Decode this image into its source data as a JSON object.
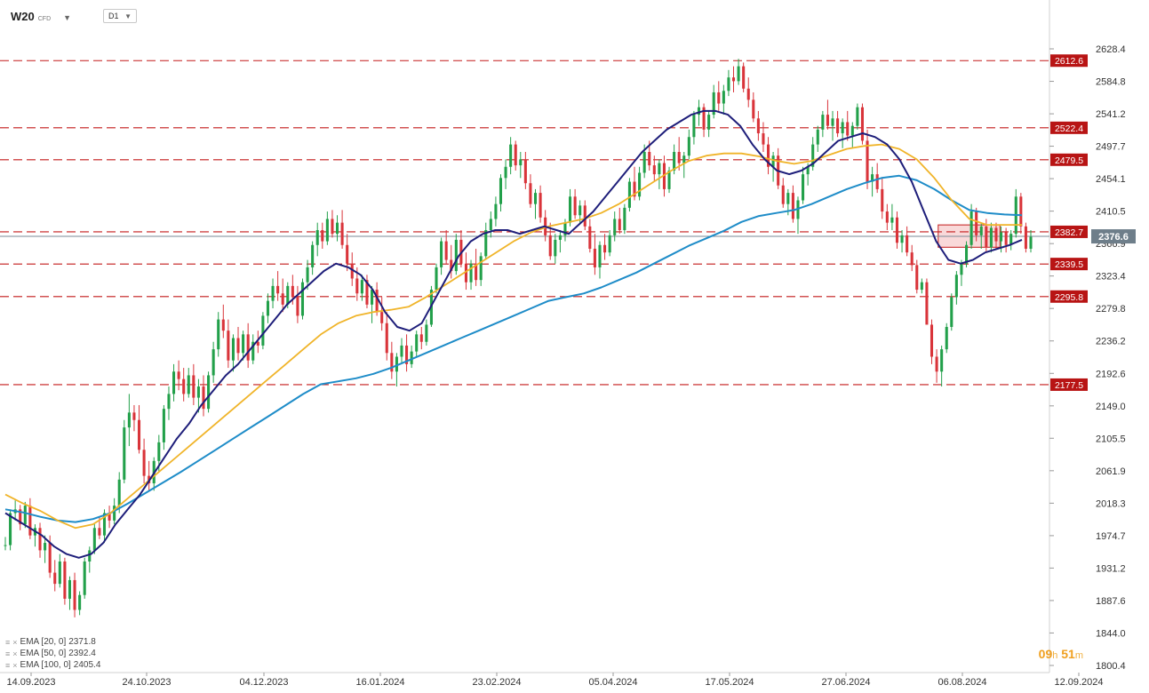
{
  "header": {
    "symbol": "W20",
    "symbol_type": "CFD",
    "timeframe": "D1"
  },
  "colors": {
    "bull": "#22a04a",
    "bear": "#d9343a",
    "ema20": "#1e1e7a",
    "ema50": "#f0b429",
    "ema100": "#1e8cc8",
    "level": "#c41a1a",
    "box_fill": "#f6c9c9",
    "current_price": "#7a8a96",
    "axis_text": "#333333",
    "timer": "#f0a020"
  },
  "legend": [
    {
      "label": "EMA [20, 0]",
      "value": "2371.8",
      "icons": "≡ ×"
    },
    {
      "label": "EMA [50, 0]",
      "value": "2392.4",
      "icons": "≡ ×"
    },
    {
      "label": "EMA [100, 0]",
      "value": "2405.4",
      "icons": "≡ ×"
    }
  ],
  "timer": {
    "hours": "09",
    "h": "h",
    "minutes": "51",
    "m": "m"
  },
  "chart_data": {
    "type": "candlestick",
    "title": "",
    "y_ticks": [
      2628.4,
      2584.8,
      2541.2,
      2497.7,
      2454.1,
      2410.5,
      2366.9,
      2323.4,
      2279.8,
      2236.2,
      2192.6,
      2149.0,
      2105.5,
      2061.9,
      2018.3,
      1974.7,
      1931.2,
      1887.6,
      1844.0,
      1800.4
    ],
    "y_tick_labels": [
      "2628.4",
      "2584.8",
      "2541.2",
      "2497.7",
      "2454.1",
      "2410.5",
      "2366.9",
      "2323.4",
      "2279.8",
      "2236.2",
      "2192.6",
      "2149.0",
      "2105.5",
      "2061.9",
      "2018.3",
      "1974.7",
      "1931.2",
      "1887.6",
      "1844.0",
      "1800.4"
    ],
    "ylim": [
      1797,
      2651
    ],
    "x_ticks": [
      "14.09.2023",
      "24.10.2023",
      "04.12.2023",
      "16.01.2024",
      "23.02.2024",
      "05.04.2024",
      "17.05.2024",
      "27.06.2024",
      "06.08.2024",
      "12.09.2024"
    ],
    "levels": [
      {
        "value": 2612.6,
        "label": "2612.6"
      },
      {
        "value": 2522.4,
        "label": "2522.4"
      },
      {
        "value": 2479.5,
        "label": "2479.5"
      },
      {
        "value": 2382.7,
        "label": "2382.7"
      },
      {
        "value": 2339.5,
        "label": "2339.5"
      },
      {
        "value": 2295.8,
        "label": "2295.8"
      },
      {
        "value": 2177.5,
        "label": "2177.5"
      }
    ],
    "current_price": {
      "value": 2376.6,
      "label": "2376.6"
    },
    "box": {
      "x_from": 272,
      "x_to": 290,
      "y_top": 2392,
      "y_bottom": 2362
    },
    "x_slots": 300,
    "ohlc": [
      [
        1961,
        1973,
        1955,
        1962
      ],
      [
        1962,
        2010,
        1955,
        2005
      ],
      [
        2005,
        2022,
        1995,
        2010
      ],
      [
        2010,
        2016,
        1982,
        1990
      ],
      [
        1990,
        2020,
        1985,
        2015
      ],
      [
        2015,
        2025,
        1970,
        1975
      ],
      [
        1975,
        1990,
        1960,
        1985
      ],
      [
        1985,
        1992,
        1945,
        1955
      ],
      [
        1955,
        1975,
        1938,
        1965
      ],
      [
        1965,
        1975,
        1918,
        1925
      ],
      [
        1925,
        1942,
        1900,
        1910
      ],
      [
        1910,
        1950,
        1905,
        1940
      ],
      [
        1940,
        1945,
        1882,
        1890
      ],
      [
        1890,
        1920,
        1875,
        1915
      ],
      [
        1915,
        1925,
        1865,
        1875
      ],
      [
        1875,
        1900,
        1868,
        1895
      ],
      [
        1895,
        1945,
        1890,
        1940
      ],
      [
        1940,
        1960,
        1925,
        1955
      ],
      [
        1955,
        1990,
        1950,
        1985
      ],
      [
        1985,
        2000,
        1970,
        1975
      ],
      [
        1975,
        2010,
        1965,
        2005
      ],
      [
        2005,
        2015,
        1985,
        1995
      ],
      [
        1995,
        2025,
        1990,
        2015
      ],
      [
        2015,
        2060,
        2005,
        2050
      ],
      [
        2050,
        2130,
        2045,
        2120
      ],
      [
        2120,
        2165,
        2095,
        2140
      ],
      [
        2140,
        2150,
        2115,
        2130
      ],
      [
        2130,
        2150,
        2085,
        2090
      ],
      [
        2090,
        2105,
        2045,
        2055
      ],
      [
        2055,
        2075,
        2035,
        2045
      ],
      [
        2045,
        2080,
        2035,
        2075
      ],
      [
        2075,
        2110,
        2060,
        2100
      ],
      [
        2100,
        2150,
        2090,
        2145
      ],
      [
        2145,
        2175,
        2130,
        2165
      ],
      [
        2165,
        2205,
        2155,
        2195
      ],
      [
        2195,
        2210,
        2170,
        2185
      ],
      [
        2185,
        2200,
        2155,
        2165
      ],
      [
        2165,
        2200,
        2160,
        2190
      ],
      [
        2190,
        2205,
        2150,
        2160
      ],
      [
        2160,
        2185,
        2140,
        2175
      ],
      [
        2175,
        2190,
        2135,
        2145
      ],
      [
        2145,
        2195,
        2140,
        2190
      ],
      [
        2190,
        2235,
        2180,
        2225
      ],
      [
        2225,
        2275,
        2215,
        2265
      ],
      [
        2265,
        2285,
        2240,
        2250
      ],
      [
        2250,
        2265,
        2200,
        2210
      ],
      [
        2210,
        2245,
        2195,
        2240
      ],
      [
        2240,
        2255,
        2210,
        2220
      ],
      [
        2220,
        2250,
        2210,
        2245
      ],
      [
        2245,
        2260,
        2200,
        2210
      ],
      [
        2210,
        2245,
        2205,
        2235
      ],
      [
        2235,
        2250,
        2220,
        2230
      ],
      [
        2230,
        2275,
        2225,
        2270
      ],
      [
        2270,
        2300,
        2260,
        2290
      ],
      [
        2290,
        2320,
        2280,
        2310
      ],
      [
        2310,
        2330,
        2290,
        2300
      ],
      [
        2300,
        2320,
        2275,
        2285
      ],
      [
        2285,
        2315,
        2280,
        2310
      ],
      [
        2310,
        2325,
        2285,
        2295
      ],
      [
        2295,
        2310,
        2260,
        2270
      ],
      [
        2270,
        2320,
        2265,
        2315
      ],
      [
        2315,
        2345,
        2305,
        2335
      ],
      [
        2335,
        2370,
        2325,
        2365
      ],
      [
        2365,
        2395,
        2350,
        2385
      ],
      [
        2385,
        2395,
        2360,
        2370
      ],
      [
        2370,
        2410,
        2365,
        2400
      ],
      [
        2400,
        2412,
        2375,
        2380
      ],
      [
        2380,
        2405,
        2370,
        2395
      ],
      [
        2395,
        2412,
        2360,
        2365
      ],
      [
        2365,
        2380,
        2330,
        2340
      ],
      [
        2340,
        2355,
        2310,
        2320
      ],
      [
        2320,
        2335,
        2290,
        2300
      ],
      [
        2300,
        2325,
        2290,
        2318
      ],
      [
        2318,
        2325,
        2280,
        2285
      ],
      [
        2285,
        2310,
        2260,
        2305
      ],
      [
        2305,
        2315,
        2270,
        2275
      ],
      [
        2275,
        2295,
        2250,
        2260
      ],
      [
        2260,
        2275,
        2210,
        2220
      ],
      [
        2220,
        2235,
        2185,
        2195
      ],
      [
        2195,
        2220,
        2175,
        2215
      ],
      [
        2215,
        2240,
        2205,
        2230
      ],
      [
        2230,
        2245,
        2195,
        2205
      ],
      [
        2205,
        2230,
        2200,
        2222
      ],
      [
        2222,
        2250,
        2215,
        2245
      ],
      [
        2245,
        2255,
        2225,
        2235
      ],
      [
        2235,
        2265,
        2230,
        2258
      ],
      [
        2258,
        2310,
        2255,
        2305
      ],
      [
        2305,
        2340,
        2300,
        2335
      ],
      [
        2335,
        2375,
        2325,
        2370
      ],
      [
        2370,
        2385,
        2340,
        2345
      ],
      [
        2345,
        2365,
        2320,
        2330
      ],
      [
        2330,
        2380,
        2325,
        2372
      ],
      [
        2372,
        2385,
        2335,
        2340
      ],
      [
        2340,
        2355,
        2305,
        2315
      ],
      [
        2315,
        2345,
        2305,
        2340
      ],
      [
        2340,
        2360,
        2310,
        2318
      ],
      [
        2318,
        2355,
        2310,
        2350
      ],
      [
        2350,
        2395,
        2345,
        2385
      ],
      [
        2385,
        2410,
        2375,
        2400
      ],
      [
        2400,
        2430,
        2390,
        2420
      ],
      [
        2420,
        2460,
        2410,
        2455
      ],
      [
        2455,
        2480,
        2440,
        2470
      ],
      [
        2470,
        2510,
        2460,
        2500
      ],
      [
        2500,
        2505,
        2465,
        2472
      ],
      [
        2472,
        2490,
        2455,
        2480
      ],
      [
        2480,
        2490,
        2440,
        2448
      ],
      [
        2448,
        2460,
        2415,
        2420
      ],
      [
        2420,
        2440,
        2400,
        2435
      ],
      [
        2435,
        2445,
        2395,
        2402
      ],
      [
        2402,
        2412,
        2370,
        2378
      ],
      [
        2378,
        2395,
        2345,
        2350
      ],
      [
        2350,
        2380,
        2340,
        2372
      ],
      [
        2372,
        2385,
        2355,
        2378
      ],
      [
        2378,
        2400,
        2370,
        2395
      ],
      [
        2395,
        2440,
        2390,
        2430
      ],
      [
        2430,
        2440,
        2400,
        2405
      ],
      [
        2405,
        2425,
        2395,
        2418
      ],
      [
        2418,
        2425,
        2385,
        2390
      ],
      [
        2390,
        2400,
        2355,
        2360
      ],
      [
        2360,
        2380,
        2325,
        2335
      ],
      [
        2335,
        2370,
        2320,
        2365
      ],
      [
        2365,
        2380,
        2345,
        2355
      ],
      [
        2355,
        2385,
        2350,
        2378
      ],
      [
        2378,
        2410,
        2370,
        2400
      ],
      [
        2400,
        2415,
        2380,
        2385
      ],
      [
        2385,
        2420,
        2380,
        2415
      ],
      [
        2415,
        2455,
        2410,
        2450
      ],
      [
        2450,
        2470,
        2425,
        2430
      ],
      [
        2430,
        2470,
        2425,
        2462
      ],
      [
        2462,
        2500,
        2455,
        2490
      ],
      [
        2490,
        2505,
        2465,
        2472
      ],
      [
        2472,
        2485,
        2450,
        2460
      ],
      [
        2460,
        2480,
        2440,
        2475
      ],
      [
        2475,
        2485,
        2430,
        2440
      ],
      [
        2440,
        2470,
        2435,
        2465
      ],
      [
        2465,
        2500,
        2460,
        2490
      ],
      [
        2490,
        2510,
        2465,
        2475
      ],
      [
        2475,
        2490,
        2455,
        2485
      ],
      [
        2485,
        2520,
        2480,
        2510
      ],
      [
        2510,
        2545,
        2500,
        2540
      ],
      [
        2540,
        2560,
        2525,
        2550
      ],
      [
        2550,
        2555,
        2510,
        2520
      ],
      [
        2520,
        2545,
        2510,
        2540
      ],
      [
        2540,
        2580,
        2535,
        2570
      ],
      [
        2570,
        2585,
        2545,
        2555
      ],
      [
        2555,
        2580,
        2540,
        2572
      ],
      [
        2572,
        2600,
        2565,
        2590
      ],
      [
        2590,
        2605,
        2570,
        2585
      ],
      [
        2585,
        2615,
        2580,
        2605
      ],
      [
        2605,
        2610,
        2570,
        2575
      ],
      [
        2575,
        2590,
        2550,
        2560
      ],
      [
        2560,
        2570,
        2530,
        2535
      ],
      [
        2535,
        2545,
        2505,
        2515
      ],
      [
        2515,
        2530,
        2490,
        2500
      ],
      [
        2500,
        2510,
        2460,
        2470
      ],
      [
        2470,
        2490,
        2450,
        2485
      ],
      [
        2485,
        2495,
        2440,
        2445
      ],
      [
        2445,
        2455,
        2415,
        2420
      ],
      [
        2420,
        2440,
        2405,
        2435
      ],
      [
        2435,
        2445,
        2395,
        2400
      ],
      [
        2400,
        2430,
        2380,
        2425
      ],
      [
        2425,
        2470,
        2420,
        2460
      ],
      [
        2460,
        2475,
        2445,
        2470
      ],
      [
        2470,
        2510,
        2465,
        2500
      ],
      [
        2500,
        2525,
        2490,
        2520
      ],
      [
        2520,
        2545,
        2510,
        2540
      ],
      [
        2540,
        2560,
        2520,
        2525
      ],
      [
        2525,
        2545,
        2505,
        2535
      ],
      [
        2535,
        2545,
        2510,
        2515
      ],
      [
        2515,
        2535,
        2495,
        2530
      ],
      [
        2530,
        2545,
        2505,
        2512
      ],
      [
        2512,
        2530,
        2495,
        2525
      ],
      [
        2525,
        2555,
        2520,
        2550
      ],
      [
        2550,
        2555,
        2500,
        2505
      ],
      [
        2505,
        2520,
        2440,
        2450
      ],
      [
        2450,
        2470,
        2430,
        2460
      ],
      [
        2460,
        2475,
        2435,
        2440
      ],
      [
        2440,
        2455,
        2400,
        2410
      ],
      [
        2410,
        2420,
        2385,
        2395
      ],
      [
        2395,
        2420,
        2385,
        2402
      ],
      [
        2402,
        2410,
        2360,
        2368
      ],
      [
        2368,
        2385,
        2355,
        2378
      ],
      [
        2378,
        2390,
        2350,
        2355
      ],
      [
        2355,
        2365,
        2330,
        2338
      ],
      [
        2338,
        2345,
        2300,
        2305
      ],
      [
        2305,
        2320,
        2300,
        2315
      ],
      [
        2315,
        2320,
        2260,
        2258
      ],
      [
        2258,
        2265,
        2205,
        2215
      ],
      [
        2215,
        2225,
        2180,
        2195
      ],
      [
        2195,
        2230,
        2175,
        2225
      ],
      [
        2225,
        2260,
        2220,
        2255
      ],
      [
        2255,
        2300,
        2250,
        2295
      ],
      [
        2295,
        2330,
        2285,
        2325
      ],
      [
        2325,
        2345,
        2310,
        2340
      ],
      [
        2340,
        2370,
        2335,
        2365
      ],
      [
        2365,
        2420,
        2360,
        2410
      ],
      [
        2410,
        2415,
        2370,
        2378
      ],
      [
        2378,
        2395,
        2360,
        2390
      ],
      [
        2390,
        2400,
        2355,
        2362
      ],
      [
        2362,
        2395,
        2355,
        2388
      ],
      [
        2388,
        2395,
        2360,
        2370
      ],
      [
        2370,
        2390,
        2355,
        2382
      ],
      [
        2382,
        2388,
        2355,
        2365
      ],
      [
        2365,
        2385,
        2358,
        2380
      ],
      [
        2380,
        2440,
        2375,
        2430
      ],
      [
        2430,
        2435,
        2380,
        2390
      ],
      [
        2390,
        2395,
        2355,
        2360
      ],
      [
        2360,
        2385,
        2355,
        2376
      ]
    ],
    "ema20": [
      2005,
      1995,
      1985,
      1975,
      1960,
      1950,
      1945,
      1950,
      1965,
      1990,
      2010,
      2030,
      2055,
      2080,
      2105,
      2125,
      2150,
      2170,
      2190,
      2205,
      2225,
      2245,
      2265,
      2285,
      2300,
      2315,
      2330,
      2340,
      2335,
      2325,
      2305,
      2275,
      2255,
      2250,
      2260,
      2290,
      2320,
      2350,
      2370,
      2380,
      2385,
      2385,
      2380,
      2385,
      2390,
      2385,
      2380,
      2395,
      2410,
      2430,
      2450,
      2470,
      2490,
      2505,
      2520,
      2530,
      2540,
      2545,
      2545,
      2540,
      2525,
      2500,
      2480,
      2465,
      2460,
      2465,
      2475,
      2490,
      2505,
      2510,
      2515,
      2510,
      2500,
      2480,
      2450,
      2410,
      2370,
      2345,
      2340,
      2345,
      2355,
      2360,
      2365,
      2372
    ],
    "ema50": [
      2030,
      2018,
      2008,
      1995,
      1985,
      1990,
      2005,
      2025,
      2045,
      2065,
      2085,
      2105,
      2125,
      2145,
      2165,
      2185,
      2205,
      2225,
      2245,
      2260,
      2270,
      2275,
      2278,
      2282,
      2295,
      2310,
      2325,
      2340,
      2355,
      2370,
      2382,
      2390,
      2395,
      2400,
      2408,
      2420,
      2435,
      2450,
      2465,
      2478,
      2485,
      2488,
      2488,
      2484,
      2478,
      2474,
      2478,
      2486,
      2494,
      2498,
      2500,
      2494,
      2480,
      2455,
      2425,
      2400,
      2392,
      2392,
      2392
    ],
    "ema100": [
      2010,
      2006,
      2000,
      1995,
      1993,
      1997,
      2005,
      2018,
      2032,
      2046,
      2060,
      2075,
      2090,
      2105,
      2120,
      2135,
      2150,
      2165,
      2178,
      2182,
      2186,
      2192,
      2200,
      2210,
      2220,
      2230,
      2240,
      2250,
      2260,
      2270,
      2280,
      2290,
      2295,
      2300,
      2308,
      2318,
      2328,
      2340,
      2352,
      2364,
      2374,
      2384,
      2396,
      2404,
      2408,
      2412,
      2420,
      2430,
      2440,
      2448,
      2455,
      2458,
      2452,
      2440,
      2425,
      2412,
      2408,
      2406,
      2405
    ]
  }
}
